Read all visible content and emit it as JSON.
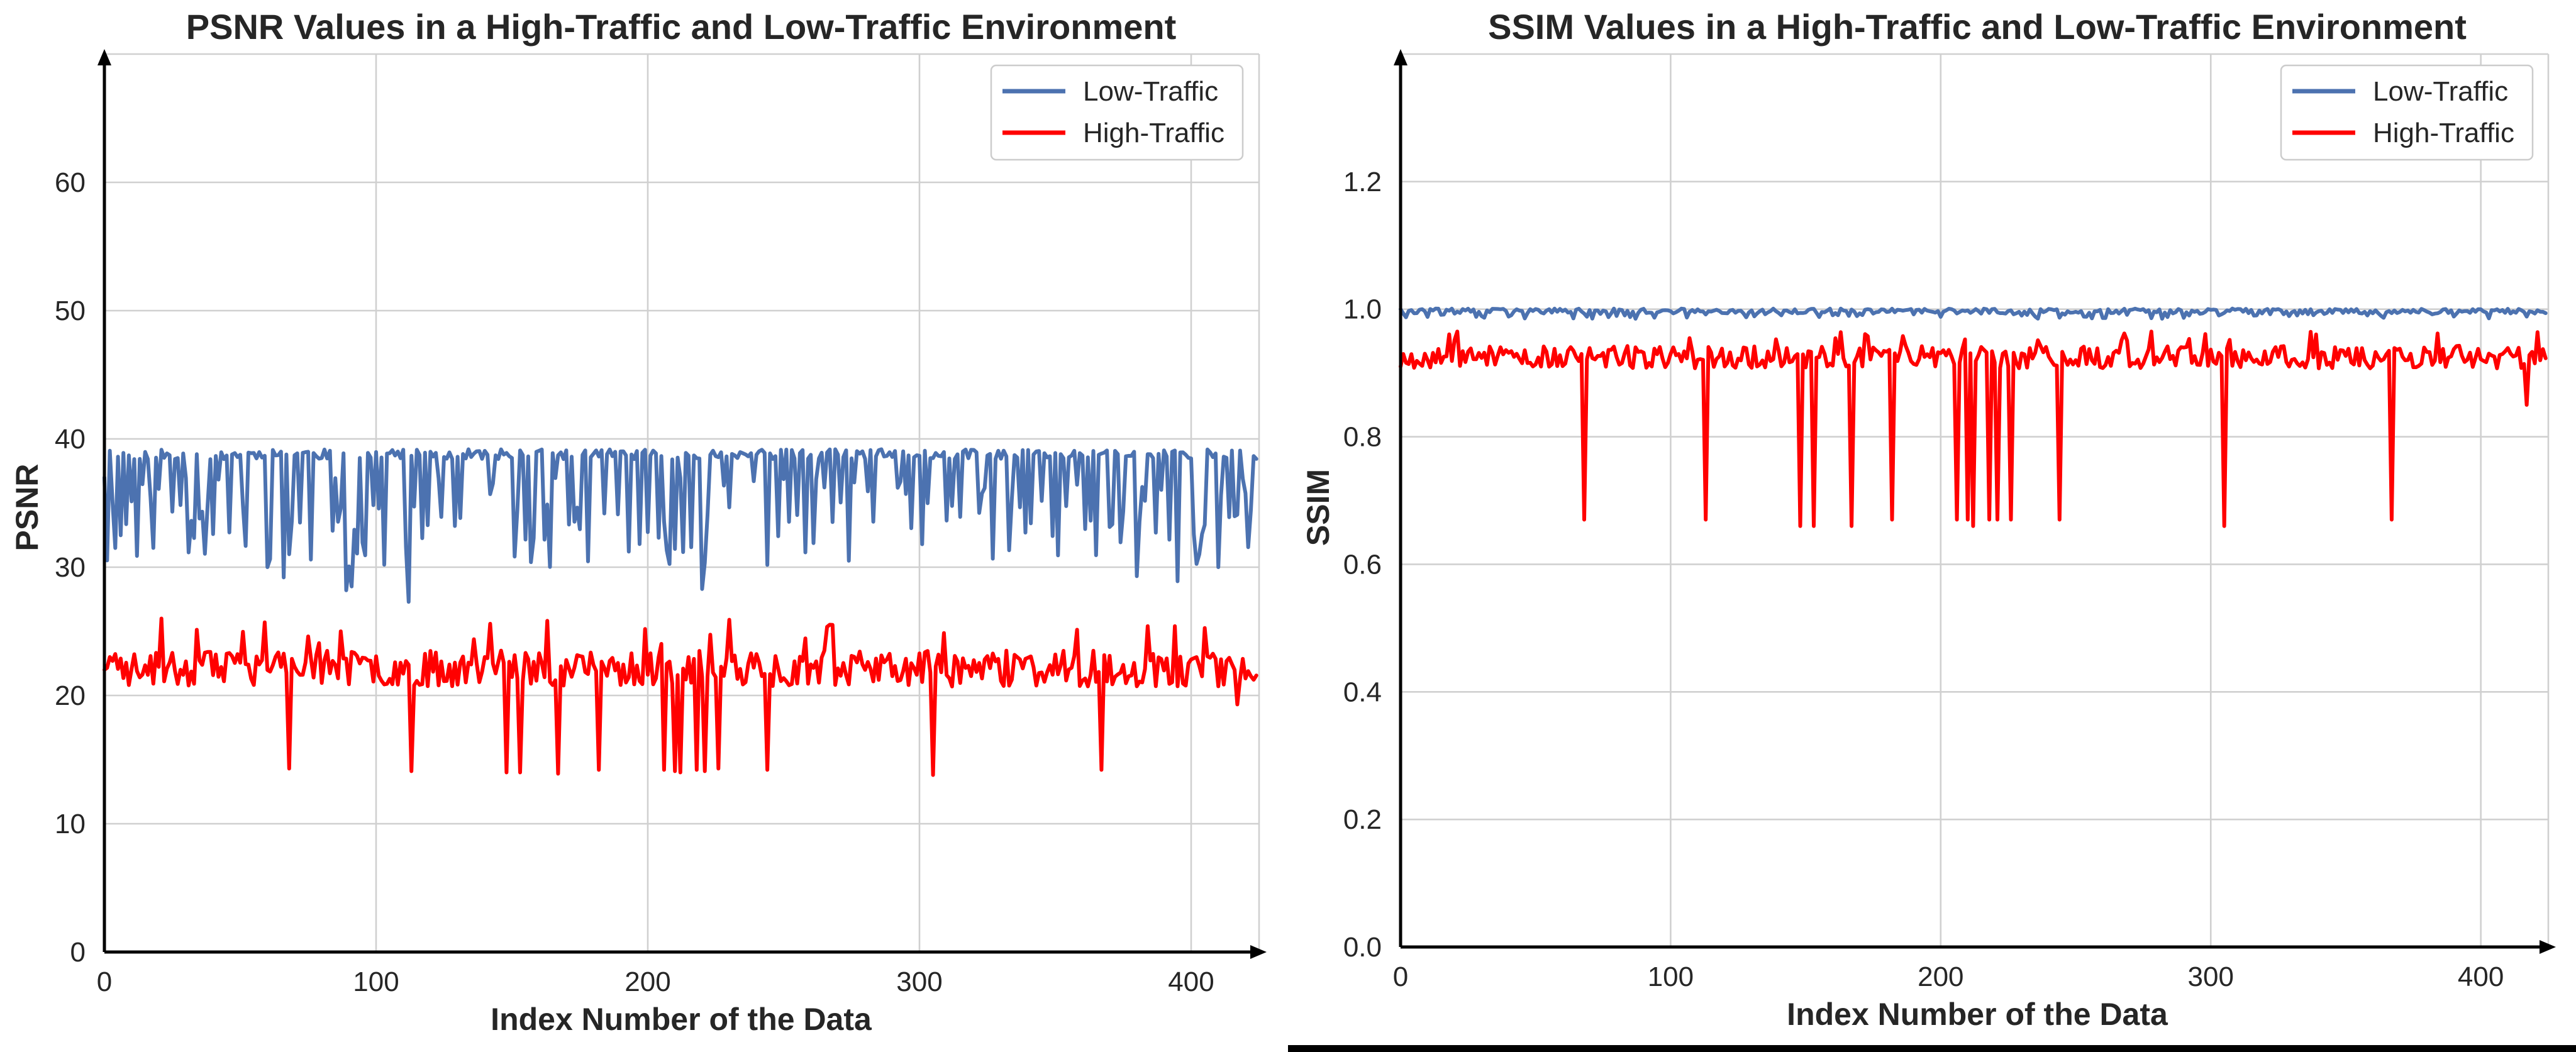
{
  "colors": {
    "low": "#4c72b0",
    "high": "#ff0000"
  },
  "chart_data": [
    {
      "type": "line",
      "title": "PSNR Values in a High-Traffic and Low-Traffic Environment",
      "xlabel": "Index Number of the Data",
      "ylabel": "PSNR",
      "xlim": [
        0,
        425
      ],
      "ylim": [
        0,
        70
      ],
      "xticks": [
        0,
        100,
        200,
        300,
        400
      ],
      "yticks": [
        0,
        10,
        20,
        30,
        40,
        50,
        60
      ],
      "tick_labels_x": [
        "0",
        "100",
        "200",
        "300",
        "400"
      ],
      "tick_labels_y": [
        "0",
        "10",
        "20",
        "30",
        "40",
        "50",
        "60"
      ],
      "grid": true,
      "legend_position": "top-right",
      "generation": {
        "length": 425,
        "low": {
          "base": 38.8,
          "wiggle": 0.4,
          "dips": 0.4,
          "dip_min": 30,
          "dip_max": 37
        },
        "high": {
          "base": 22.1,
          "wiggle": 1.4,
          "spikes": 0.04,
          "spike_min": 24,
          "spike_max": 26
        }
      },
      "series": [
        {
          "name": "Low-Traffic",
          "color": "#4c72b0",
          "values": [],
          "extremes": [
            [
              66,
              29.2
            ],
            [
              89,
              28.2
            ],
            [
              91,
              28.5
            ],
            [
              112,
              27.3
            ],
            [
              220,
              28.3
            ],
            [
              380,
              29.3
            ],
            [
              395,
              28.9
            ],
            [
              410,
              30
            ],
            [
              0,
              37
            ]
          ]
        },
        {
          "name": "High-Traffic",
          "color": "#ff0000",
          "values": [],
          "extremes": [
            [
              0,
              22
            ],
            [
              21,
              26
            ],
            [
              68,
              14.3
            ],
            [
              87,
              25
            ],
            [
              113,
              14.1
            ],
            [
              148,
              14
            ],
            [
              153,
              14
            ],
            [
              167,
              13.9
            ],
            [
              182,
              14.2
            ],
            [
              206,
              14.2
            ],
            [
              210,
              14.1
            ],
            [
              212,
              14
            ],
            [
              218,
              14.2
            ],
            [
              221,
              14.1
            ],
            [
              226,
              14.3
            ],
            [
              244,
              14.2
            ],
            [
              268,
              25.5
            ],
            [
              305,
              13.8
            ],
            [
              367,
              14.2
            ],
            [
              384,
              25.4
            ],
            [
              417,
              19.3
            ],
            [
              422,
              21.5
            ]
          ]
        }
      ]
    },
    {
      "type": "line",
      "title": "SSIM Values in a High-Traffic and Low-Traffic Environment",
      "xlabel": "Index Number of the Data",
      "ylabel": "SSIM",
      "xlim": [
        0,
        425
      ],
      "ylim": [
        0,
        1.4
      ],
      "xticks": [
        0,
        100,
        200,
        300,
        400
      ],
      "yticks": [
        0,
        0.2,
        0.4,
        0.6,
        0.8,
        1.0,
        1.2
      ],
      "tick_labels_x": [
        "0",
        "100",
        "200",
        "300",
        "400"
      ],
      "tick_labels_y": [
        "0.0",
        "0.2",
        "0.4",
        "0.6",
        "0.8",
        "1.0",
        "1.2"
      ],
      "grid": true,
      "legend_position": "top-right",
      "generation": {
        "length": 425,
        "low": {
          "base": 0.997,
          "wiggle": 0.004,
          "dips": 0.15,
          "dip_min": 0.985,
          "dip_max": 0.993
        },
        "high": {
          "base": 0.925,
          "wiggle": 0.018,
          "spikes": 0.05,
          "spike_min": 0.948,
          "spike_max": 0.965
        }
      },
      "series": [
        {
          "name": "Low-Traffic",
          "color": "#4c72b0",
          "values": [],
          "extremes": [
            [
              0,
              1.0
            ],
            [
              87,
              0.985
            ],
            [
              200,
              0.988
            ]
          ]
        },
        {
          "name": "High-Traffic",
          "color": "#ff0000",
          "values": [],
          "extremes": [
            [
              0,
              0.91
            ],
            [
              21,
              0.965
            ],
            [
              68,
              0.67
            ],
            [
              113,
              0.67
            ],
            [
              148,
              0.66
            ],
            [
              153,
              0.66
            ],
            [
              167,
              0.66
            ],
            [
              182,
              0.67
            ],
            [
              206,
              0.67
            ],
            [
              210,
              0.67
            ],
            [
              212,
              0.66
            ],
            [
              218,
              0.67
            ],
            [
              221,
              0.67
            ],
            [
              226,
              0.67
            ],
            [
              244,
              0.67
            ],
            [
              268,
              0.962
            ],
            [
              305,
              0.66
            ],
            [
              367,
              0.67
            ],
            [
              384,
              0.962
            ],
            [
              417,
              0.85
            ],
            [
              422,
              0.92
            ]
          ]
        }
      ]
    }
  ]
}
